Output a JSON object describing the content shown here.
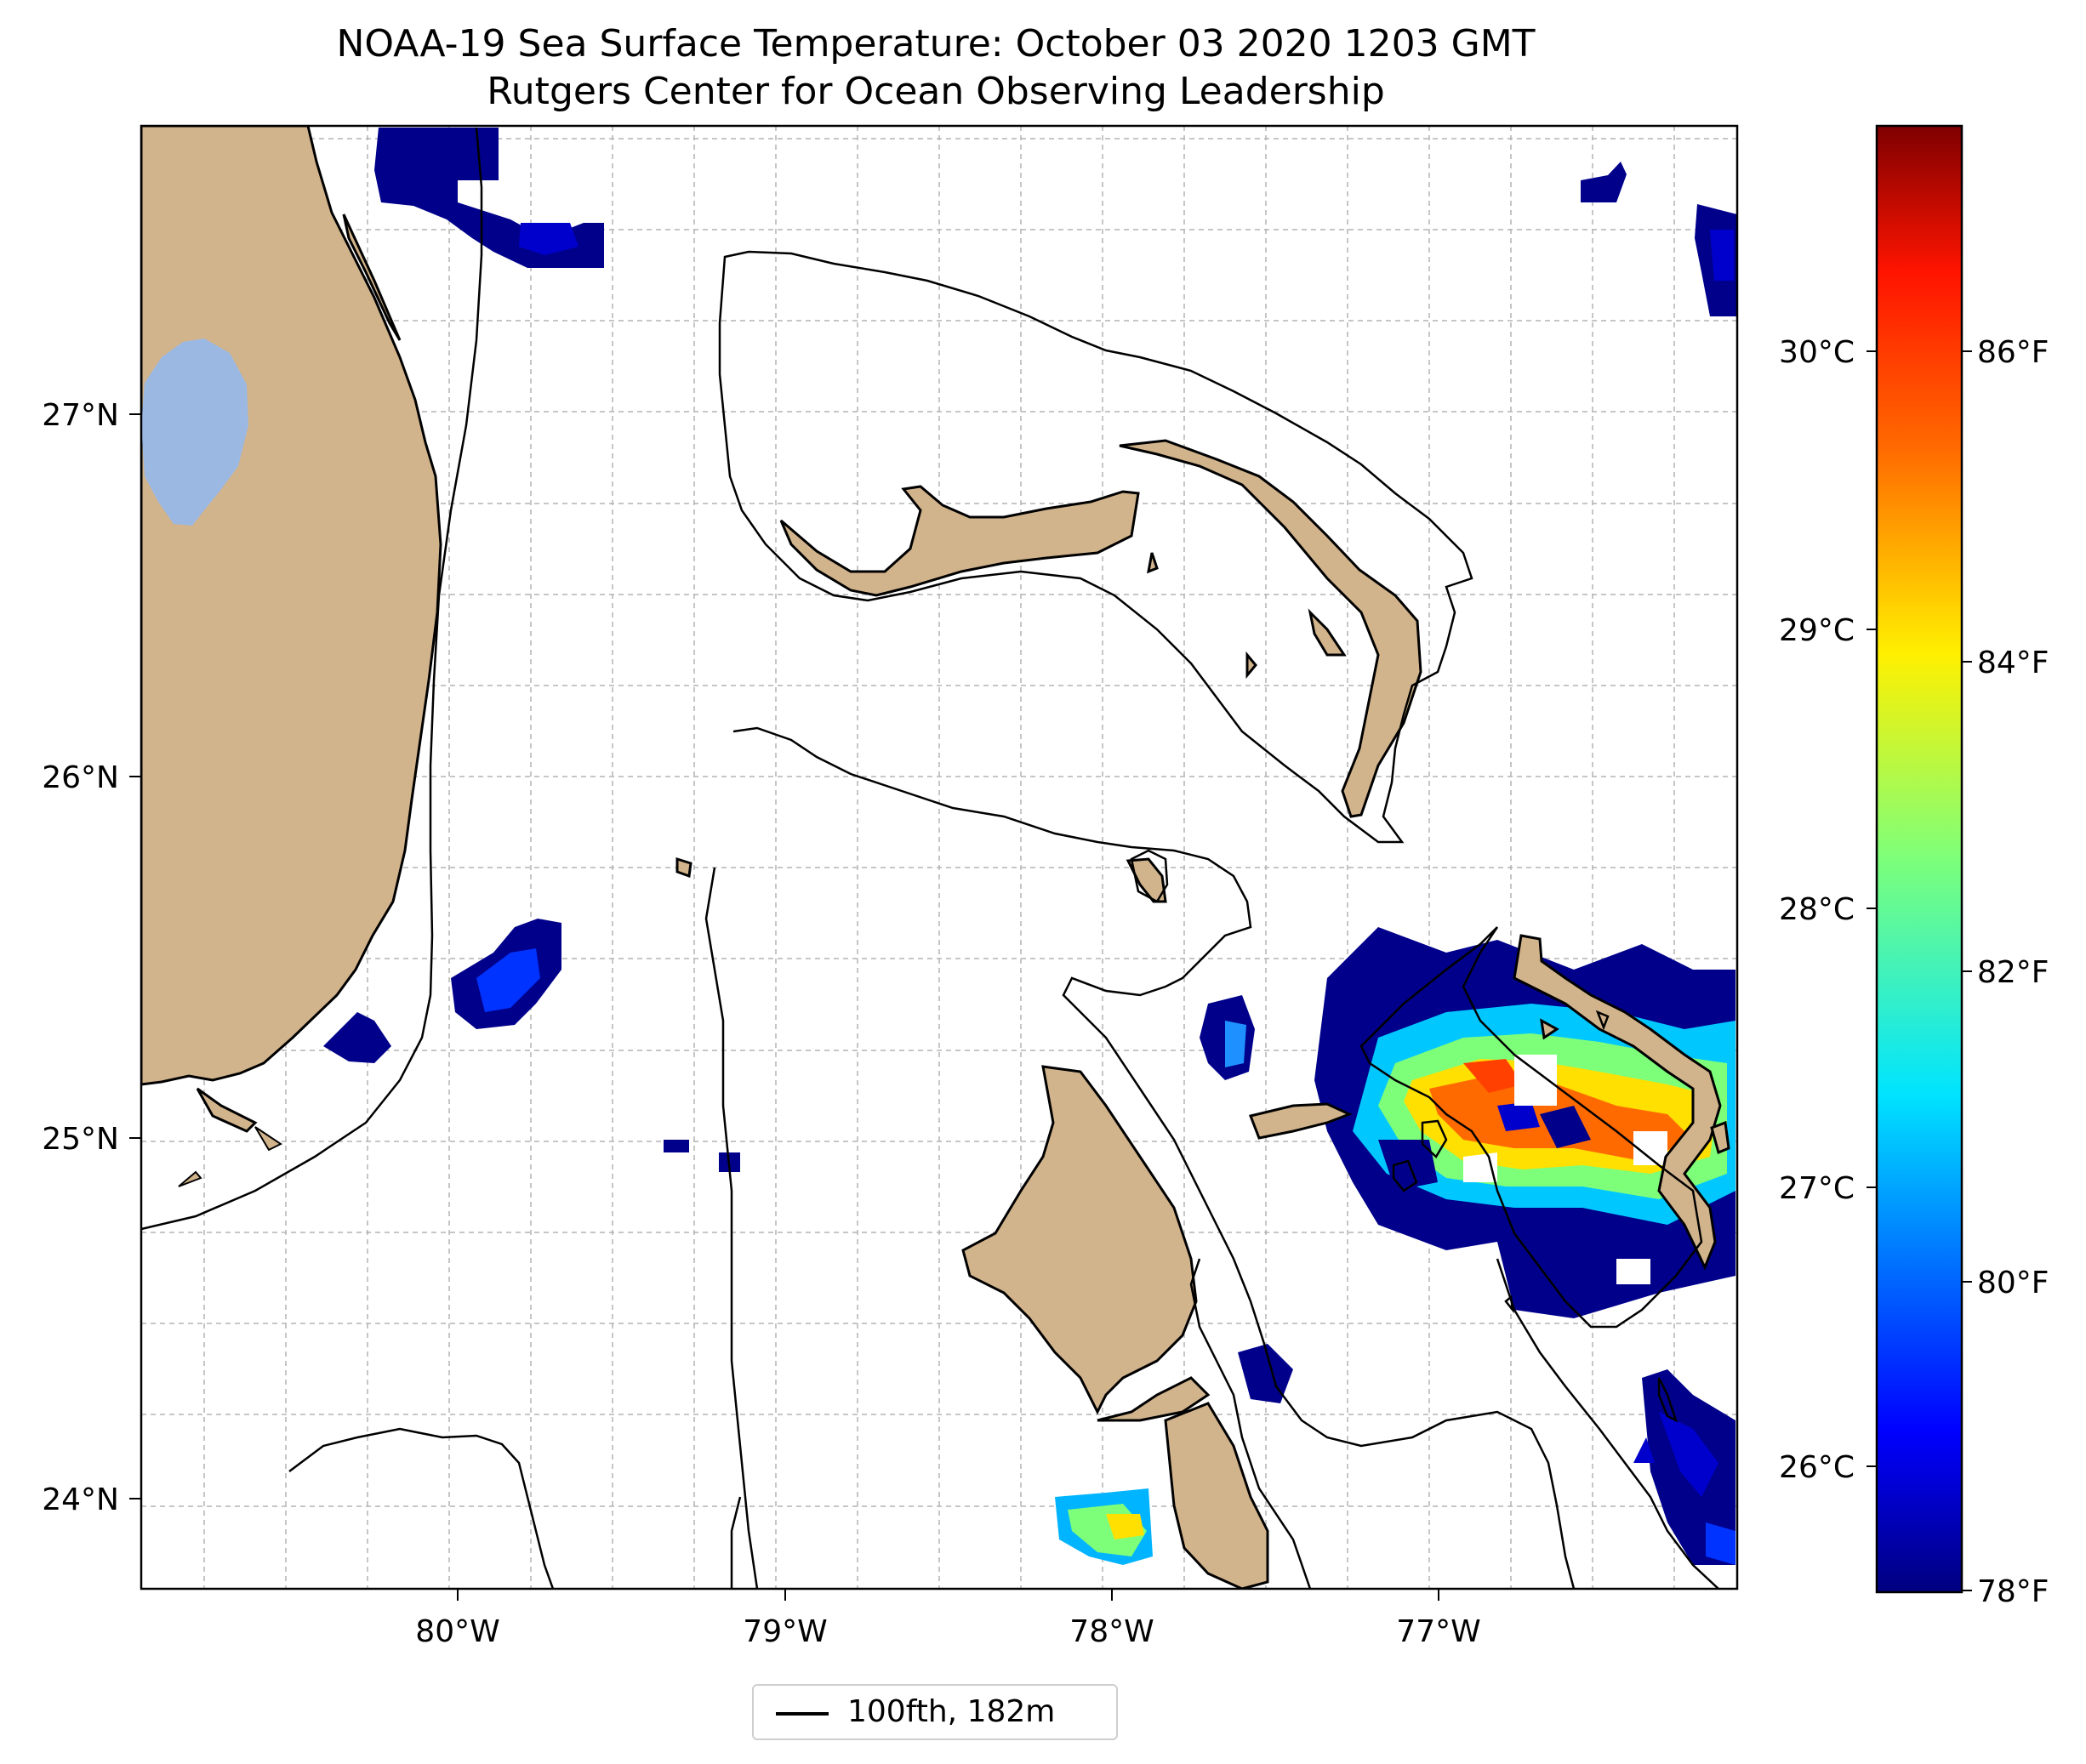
{
  "title": {
    "line1": "NOAA-19 Sea Surface Temperature: October 03 2020 1203 GMT",
    "line2": "Rutgers Center for Ocean Observing Leadership"
  },
  "axes": {
    "lon_ticks": [
      "80°W",
      "79°W",
      "78°W",
      "77°W"
    ],
    "lat_ticks": [
      "27°N",
      "26°N",
      "25°N",
      "24°N"
    ]
  },
  "colorbar": {
    "celsius_ticks": [
      "30°C",
      "29°C",
      "28°C",
      "27°C",
      "26°C"
    ],
    "fahrenheit_ticks": [
      "86°F",
      "84°F",
      "82°F",
      "80°F",
      "78°F"
    ],
    "colormap": "jet",
    "range_f": [
      78,
      88
    ]
  },
  "legend": {
    "label": "100fth, 182m"
  },
  "colors": {
    "land": "#d2b48c",
    "lake": "#9bb8e3",
    "cold_sst": "#00008b",
    "warm_sst": "#ff6a00",
    "grid": "#b0b0b0"
  }
}
